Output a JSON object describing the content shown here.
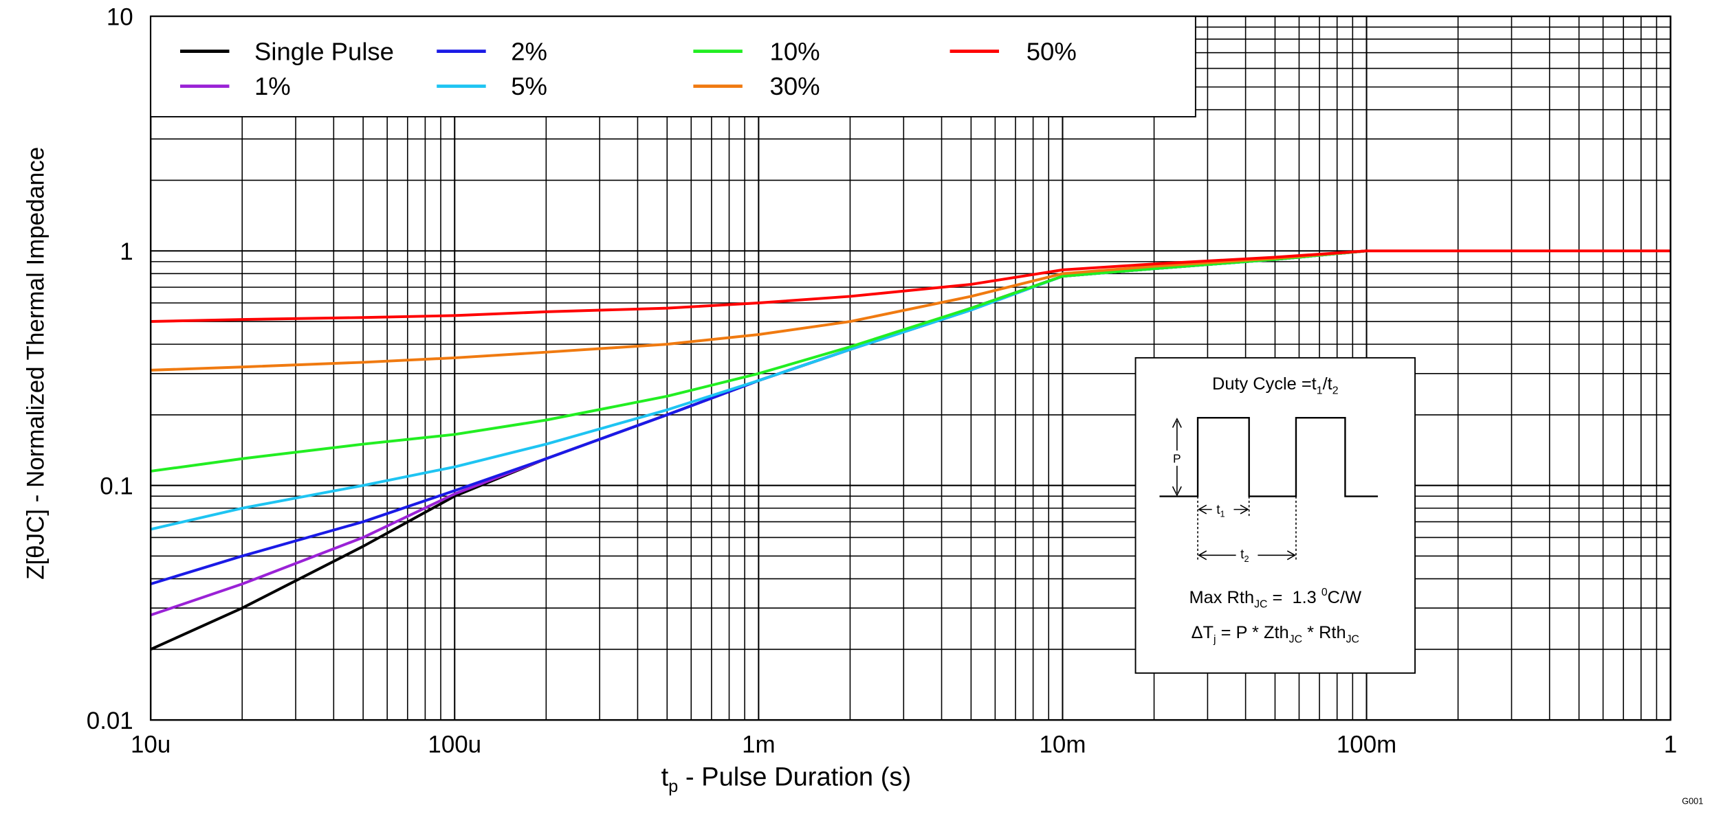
{
  "chart_data": {
    "type": "line",
    "x_label": [
      "t",
      "p",
      " - Pulse Duration (s)"
    ],
    "y_label": "Z[θJC] - Normalized Thermal Impedance",
    "log_x": true,
    "log_y": true,
    "grid": true,
    "minor_grid": true,
    "legend": "upper left",
    "xlim": [
      1e-05,
      1
    ],
    "ylim": [
      0.01,
      10
    ],
    "xticks": [
      {
        "value": 1e-05,
        "label": "10u"
      },
      {
        "value": 0.0001,
        "label": "100u"
      },
      {
        "value": 0.001,
        "label": "1m"
      },
      {
        "value": 0.01,
        "label": "10m"
      },
      {
        "value": 0.1,
        "label": "100m"
      },
      1
    ],
    "yticks": [
      0.01,
      0.1,
      1,
      10
    ],
    "x": [
      1e-05,
      2e-05,
      5e-05,
      0.0001,
      0.0002,
      0.0005,
      0.001,
      0.002,
      0.005,
      0.01,
      0.02,
      0.05,
      0.1,
      1
    ],
    "series": [
      {
        "name": "Single Pulse",
        "color": "#000000",
        "values": [
          0.02,
          0.03,
          0.055,
          0.09,
          0.13,
          0.2,
          0.28,
          0.38,
          0.57,
          0.78,
          0.84,
          0.92,
          1.0,
          null
        ]
      },
      {
        "name": "1%",
        "color": "#9a22d6",
        "values": [
          0.028,
          0.038,
          0.06,
          0.092,
          0.13,
          0.2,
          0.28,
          0.38,
          0.57,
          0.78,
          0.84,
          0.92,
          1.0,
          null
        ]
      },
      {
        "name": "2%",
        "color": "#1a1ae6",
        "values": [
          0.038,
          0.05,
          0.07,
          0.095,
          0.13,
          0.2,
          0.28,
          0.38,
          0.56,
          0.78,
          0.84,
          0.92,
          1.0,
          null
        ]
      },
      {
        "name": "5%",
        "color": "#1ec4f2",
        "values": [
          0.065,
          0.08,
          0.1,
          0.12,
          0.15,
          0.21,
          0.28,
          0.38,
          0.56,
          0.78,
          0.84,
          0.92,
          1.0,
          null
        ]
      },
      {
        "name": "10%",
        "color": "#22ee22",
        "values": [
          0.115,
          0.13,
          0.15,
          0.165,
          0.19,
          0.24,
          0.3,
          0.39,
          0.57,
          0.78,
          0.84,
          0.92,
          1.0,
          null
        ]
      },
      {
        "name": "30%",
        "color": "#f07a10",
        "values": [
          0.31,
          0.32,
          0.335,
          0.35,
          0.37,
          0.4,
          0.44,
          0.5,
          0.64,
          0.8,
          0.86,
          0.93,
          1.0,
          null
        ]
      },
      {
        "name": "50%",
        "color": "#ff0000",
        "values": [
          0.5,
          0.51,
          0.52,
          0.53,
          0.55,
          0.57,
          0.6,
          0.64,
          0.72,
          0.83,
          0.88,
          0.94,
          1.0,
          1.0
        ]
      }
    ],
    "inset": {
      "title": [
        "Duty Cycle =t",
        "1",
        "/t",
        "2"
      ],
      "p_label": "P",
      "t1": [
        "t",
        "1"
      ],
      "t2": [
        "t",
        "2"
      ],
      "rth": [
        "Max Rth",
        "JC",
        " =  1.3 ",
        "0",
        "C/W"
      ],
      "delta": [
        "ΔT",
        "j",
        " = P * Zth",
        "JC",
        " * Rth",
        "JC"
      ]
    },
    "figure_id": "G001"
  }
}
